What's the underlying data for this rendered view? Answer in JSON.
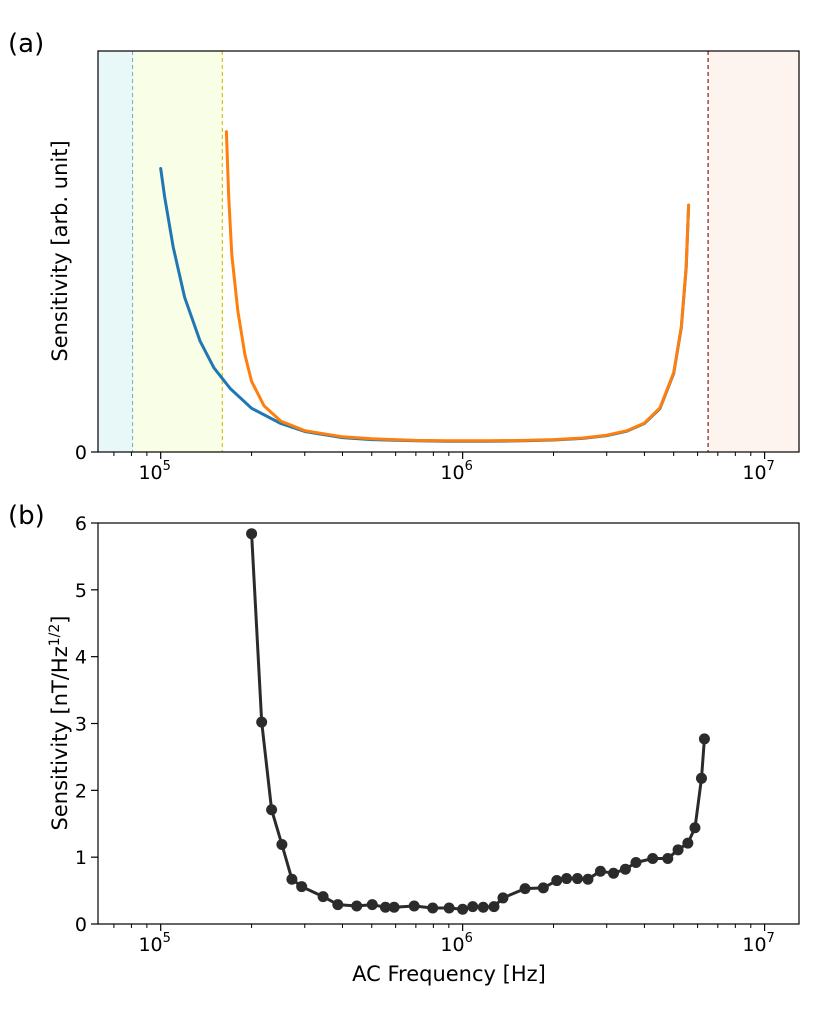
{
  "chart_data": [
    {
      "panel_label": "(a)",
      "type": "line",
      "xscale": "log",
      "xlim": [
        62000,
        13000000
      ],
      "ylim": [
        0,
        100
      ],
      "xlabel": "",
      "ylabel": "Sensitivity [arb. unit]",
      "yticks": [
        {
          "value": 0,
          "label": "0"
        }
      ],
      "xticks": [
        {
          "value": 100000,
          "base": "10",
          "exp": "5"
        },
        {
          "value": 1000000,
          "base": "10",
          "exp": "6"
        },
        {
          "value": 10000000,
          "base": "10",
          "exp": "7"
        }
      ],
      "regions": [
        {
          "name": "region-1",
          "from": 62000,
          "to": 81000,
          "fill": "#e8f7f8",
          "line": "#1f77b4"
        },
        {
          "name": "region-2",
          "from": 81000,
          "to": 160000,
          "fill": "#f9fee6",
          "line": "#d4c21a"
        },
        {
          "name": "region-3",
          "from": 6500000,
          "to": 13000000,
          "fill": "#fdf3ef",
          "line": "#8b1a1a"
        }
      ],
      "series": [
        {
          "name": "blue",
          "color": "#1f77b4",
          "x": [
            100000,
            103000,
            110000,
            120000,
            135000,
            150000,
            170000,
            200000,
            250000,
            300000,
            400000,
            500000,
            700000,
            900000,
            1200000,
            1600000,
            2000000,
            2500000,
            3000000,
            3500000,
            4000000,
            4500000,
            5000000,
            5300000,
            5500000,
            5600000
          ],
          "values": [
            70.7,
            63.7,
            51.1,
            38.6,
            27.7,
            21.0,
            15.8,
            10.9,
            7.1,
            5.1,
            3.6,
            3.1,
            2.8,
            2.7,
            2.7,
            2.8,
            3.0,
            3.4,
            4.1,
            5.2,
            7.1,
            10.8,
            19.6,
            31.0,
            46.0,
            61.4
          ]
        },
        {
          "name": "orange",
          "color": "#ff7f0e",
          "x": [
            165000,
            168000,
            172000,
            180000,
            190000,
            200000,
            220000,
            250000,
            300000,
            400000,
            500000,
            700000,
            900000,
            1200000,
            1600000,
            2000000,
            2500000,
            3000000,
            3500000,
            4000000,
            4500000,
            5000000,
            5300000,
            5500000,
            5600000
          ],
          "values": [
            79.9,
            63.7,
            49.2,
            35.2,
            24.3,
            17.6,
            11.5,
            7.7,
            5.3,
            3.8,
            3.3,
            2.9,
            2.8,
            2.8,
            2.9,
            3.1,
            3.5,
            4.2,
            5.3,
            7.2,
            11.0,
            19.8,
            31.2,
            46.3,
            61.6
          ]
        }
      ]
    },
    {
      "panel_label": "(b)",
      "type": "line",
      "xscale": "log",
      "xlim": [
        62000,
        13000000
      ],
      "ylim": [
        0,
        6
      ],
      "xlabel": "AC Frequency [Hz]",
      "ylabel": "Sensitivity [nT/Hz",
      "ylabel_sup": "1/2",
      "ylabel_end": "]",
      "yticks": [
        {
          "value": 0,
          "label": "0"
        },
        {
          "value": 1,
          "label": "1"
        },
        {
          "value": 2,
          "label": "2"
        },
        {
          "value": 3,
          "label": "3"
        },
        {
          "value": 4,
          "label": "4"
        },
        {
          "value": 5,
          "label": "5"
        },
        {
          "value": 6,
          "label": "6"
        }
      ],
      "xticks": [
        {
          "value": 100000,
          "base": "10",
          "exp": "5"
        },
        {
          "value": 1000000,
          "base": "10",
          "exp": "6"
        },
        {
          "value": 10000000,
          "base": "10",
          "exp": "7"
        }
      ],
      "series": [
        {
          "name": "measured",
          "color": "#2b2b2b",
          "marker": "circle",
          "x": [
            200000,
            216000,
            233000,
            252000,
            272000,
            293000,
            345000,
            386000,
            446000,
            502000,
            555000,
            593000,
            691000,
            796000,
            902000,
            1000000,
            1080000,
            1170000,
            1270000,
            1360000,
            1610000,
            1850000,
            2050000,
            2210000,
            2400000,
            2600000,
            2860000,
            3160000,
            3460000,
            3750000,
            4260000,
            4780000,
            5170000,
            5570000,
            5880000,
            6180000,
            6320000
          ],
          "values": [
            5.84,
            3.02,
            1.71,
            1.19,
            0.67,
            0.56,
            0.41,
            0.29,
            0.27,
            0.29,
            0.25,
            0.25,
            0.27,
            0.24,
            0.24,
            0.22,
            0.26,
            0.25,
            0.26,
            0.39,
            0.53,
            0.54,
            0.65,
            0.68,
            0.68,
            0.67,
            0.79,
            0.76,
            0.82,
            0.92,
            0.98,
            0.98,
            1.11,
            1.21,
            1.44,
            2.18,
            2.77
          ]
        }
      ]
    }
  ]
}
